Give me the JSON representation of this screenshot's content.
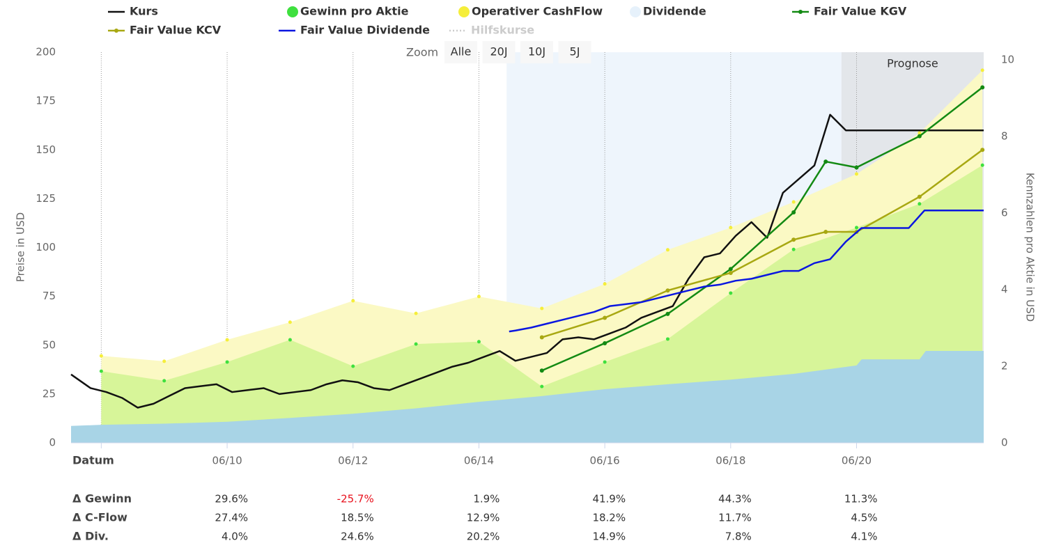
{
  "chart_data": {
    "type": "combo",
    "legend": "top",
    "zoom": {
      "label": "Zoom",
      "buttons": [
        "Alle",
        "20J",
        "10J",
        "5J"
      ]
    },
    "y_label": "Preise in USD",
    "y2_label": "Kennzahlen pro Aktie in USD",
    "xlim": [
      2007.94,
      2022.44
    ],
    "xticks": [
      {
        "value": 2008.42,
        "label": null
      },
      {
        "value": 2010.42,
        "label": "06/10"
      },
      {
        "value": 2012.42,
        "label": "06/12"
      },
      {
        "value": 2014.42,
        "label": "06/14"
      },
      {
        "value": 2016.42,
        "label": "06/16"
      },
      {
        "value": 2018.42,
        "label": "06/18"
      },
      {
        "value": 2020.42,
        "label": "06/20"
      }
    ],
    "ylim": [
      0,
      200
    ],
    "yticks": [
      0,
      25,
      50,
      75,
      100,
      125,
      150,
      175,
      200
    ],
    "y2lim": [
      0,
      10.2
    ],
    "y2ticks": [
      0,
      2,
      4,
      6,
      8,
      10
    ],
    "grid": "x",
    "bands": [
      {
        "from": 2014.86,
        "to": 2020.18,
        "color": "#eef5fc"
      },
      {
        "from": 2020.18,
        "to": 2022.44,
        "color": "#e3e6ea",
        "label": "Prognose"
      }
    ],
    "series": [
      {
        "name": "Kurs",
        "color": "#111111",
        "type": "line",
        "axis": "y",
        "x": [
          2007.94,
          2008.25,
          2008.5,
          2008.75,
          2009.0,
          2009.25,
          2009.5,
          2009.75,
          2010.0,
          2010.25,
          2010.5,
          2010.75,
          2011.0,
          2011.25,
          2011.5,
          2011.75,
          2012.0,
          2012.25,
          2012.5,
          2012.75,
          2013.0,
          2013.25,
          2013.5,
          2013.75,
          2014.0,
          2014.25,
          2014.5,
          2014.75,
          2015.0,
          2015.25,
          2015.5,
          2015.75,
          2016.0,
          2016.25,
          2016.5,
          2016.75,
          2017.0,
          2017.25,
          2017.5,
          2017.75,
          2018.0,
          2018.25,
          2018.5,
          2018.75,
          2019.0,
          2019.25,
          2019.5,
          2019.75,
          2020.0,
          2020.25,
          2020.5,
          2021.0,
          2022.0,
          2022.44
        ],
        "values": [
          35,
          28,
          26,
          23,
          18,
          20,
          24,
          28,
          29,
          30,
          26,
          27,
          28,
          25,
          26,
          27,
          30,
          32,
          31,
          28,
          27,
          30,
          33,
          36,
          39,
          41,
          44,
          47,
          42,
          44,
          46,
          53,
          54,
          53,
          56,
          59,
          64,
          67,
          70,
          84,
          95,
          97,
          106,
          113,
          105,
          128,
          135,
          142,
          168,
          160,
          160,
          160,
          160,
          160
        ]
      },
      {
        "name": "Gewinn pro Aktie",
        "color": "#d7f599",
        "marker_color": "#3ee03e",
        "type": "area",
        "axis": "y2",
        "x": [
          2008.42,
          2009.42,
          2010.42,
          2011.42,
          2012.42,
          2013.42,
          2014.42,
          2015.42,
          2016.42,
          2017.42,
          2018.42,
          2019.42,
          2020.42,
          2021.42,
          2022.42
        ],
        "values": [
          1.87,
          1.62,
          2.11,
          2.69,
          2.0,
          2.58,
          2.64,
          1.47,
          2.11,
          2.71,
          3.91,
          5.05,
          5.62,
          6.24,
          7.25
        ]
      },
      {
        "name": "Operativer CashFlow",
        "color": "#fbf9c4",
        "marker_color": "#f5ee3a",
        "type": "area",
        "axis": "y2",
        "x": [
          2008.42,
          2009.42,
          2010.42,
          2011.42,
          2012.42,
          2013.42,
          2014.42,
          2015.42,
          2016.42,
          2017.42,
          2018.42,
          2019.42,
          2020.42,
          2021.42,
          2022.42
        ],
        "values": [
          2.27,
          2.13,
          2.69,
          3.15,
          3.71,
          3.38,
          3.82,
          3.51,
          4.15,
          5.04,
          5.62,
          6.29,
          7.02,
          8.09,
          9.73
        ]
      },
      {
        "name": "Dividende",
        "color": "#a8d4e6",
        "marker_color": "#e6f1fb",
        "type": "area",
        "axis": "y2",
        "dots": false,
        "x": [
          2007.94,
          2008.42,
          2009.42,
          2010.42,
          2011.42,
          2012.42,
          2013.42,
          2014.42,
          2015.42,
          2016.42,
          2017.42,
          2018.42,
          2019.42,
          2020.42,
          2020.5,
          2021.42,
          2021.52,
          2022.44
        ],
        "values": [
          0.44,
          0.47,
          0.5,
          0.55,
          0.65,
          0.76,
          0.9,
          1.07,
          1.22,
          1.4,
          1.53,
          1.65,
          1.8,
          2.02,
          2.18,
          2.18,
          2.4,
          2.4
        ]
      },
      {
        "name": "Fair Value KGV",
        "color": "#138a13",
        "type": "line",
        "markers": true,
        "axis": "y",
        "x": [
          2015.42,
          2016.42,
          2017.42,
          2018.42,
          2019.42,
          2019.93,
          2020.42,
          2021.42,
          2022.42
        ],
        "values": [
          37,
          51,
          66,
          89,
          118,
          144,
          141,
          157,
          182
        ]
      },
      {
        "name": "Fair Value KCV",
        "color": "#a8a812",
        "type": "line",
        "markers": true,
        "axis": "y",
        "x": [
          2015.42,
          2016.42,
          2017.42,
          2018.42,
          2019.42,
          2019.93,
          2020.42,
          2021.42,
          2022.42
        ],
        "values": [
          54,
          64,
          78,
          87,
          104,
          108,
          108,
          126,
          150
        ]
      },
      {
        "name": "Fair Value Dividende",
        "color": "#0a16e0",
        "type": "line",
        "axis": "y",
        "x": [
          2014.9,
          2015.0,
          2015.25,
          2015.5,
          2015.75,
          2016.0,
          2016.25,
          2016.5,
          2016.75,
          2017.0,
          2017.25,
          2017.5,
          2017.75,
          2018.0,
          2018.25,
          2018.5,
          2018.75,
          2019.0,
          2019.25,
          2019.5,
          2019.75,
          2020.0,
          2020.25,
          2020.5,
          2020.75,
          2021.0,
          2021.25,
          2021.5,
          2022.0,
          2022.44
        ],
        "values": [
          57,
          57.5,
          59,
          61,
          63,
          65,
          67,
          70,
          71,
          72,
          74,
          76,
          78,
          80,
          81,
          83,
          84,
          86,
          88,
          88,
          92,
          94,
          103,
          110,
          110,
          110,
          110,
          119,
          119,
          119
        ]
      },
      {
        "name": "Hilfskurse",
        "color": "#cccccc",
        "type": "line",
        "dash": true,
        "visible": false,
        "axis": "y",
        "x": [],
        "values": []
      }
    ],
    "table": {
      "header": "Datum",
      "rows": [
        {
          "label": "Δ Gewinn",
          "values": [
            29.6,
            -25.7,
            1.9,
            41.9,
            44.3,
            11.3
          ],
          "value_labels": [
            "29.6%",
            "-25.7%",
            "1.9%",
            "41.9%",
            "44.3%",
            "11.3%"
          ]
        },
        {
          "label": "Δ C-Flow",
          "values": [
            27.4,
            18.5,
            12.9,
            18.2,
            11.7,
            4.5
          ],
          "value_labels": [
            "27.4%",
            "18.5%",
            "12.9%",
            "18.2%",
            "11.7%",
            "4.5%"
          ]
        },
        {
          "label": "Δ Div.",
          "values": [
            4.0,
            24.6,
            20.2,
            14.9,
            7.8,
            4.1
          ],
          "value_labels": [
            "4.0%",
            "24.6%",
            "20.2%",
            "14.9%",
            "7.8%",
            "4.1%"
          ]
        }
      ],
      "negative_color": "#e8101c"
    }
  }
}
